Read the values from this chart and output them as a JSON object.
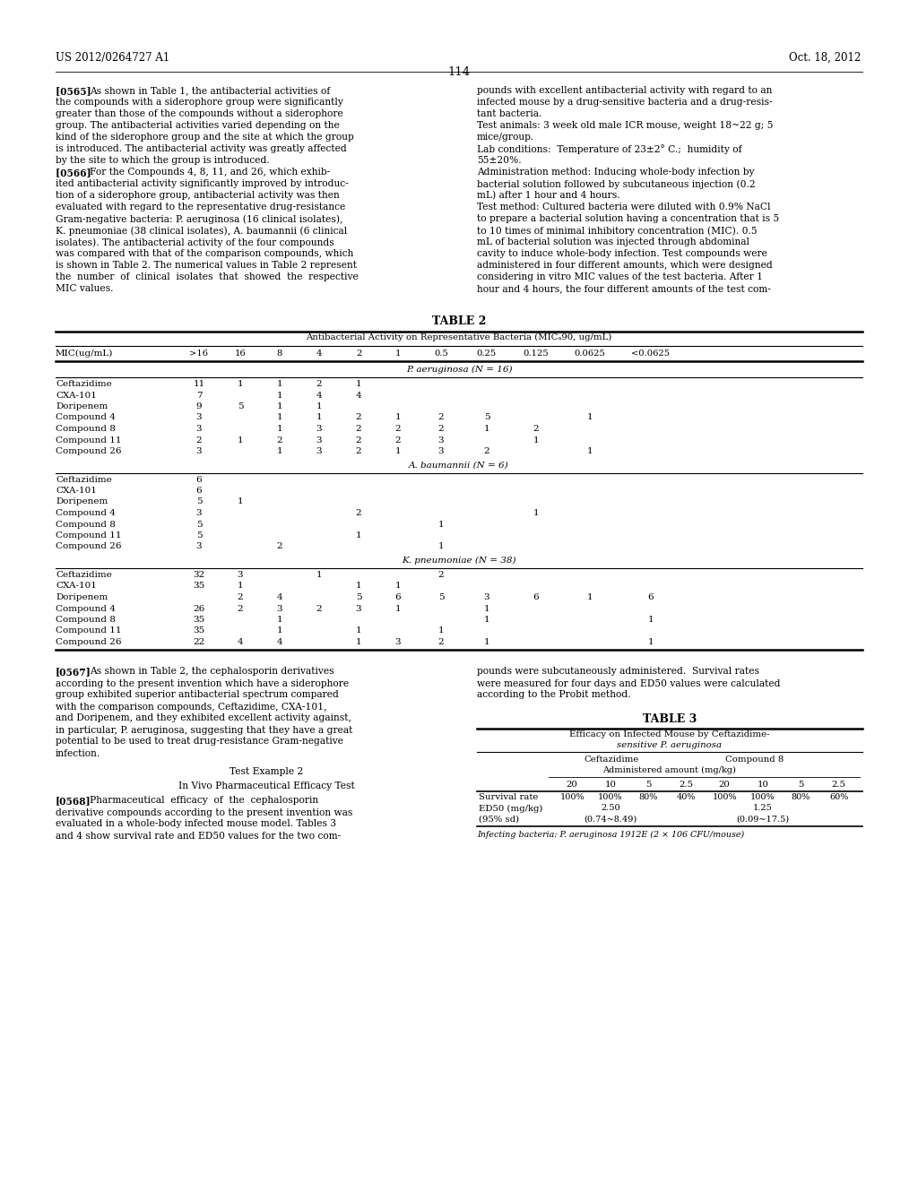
{
  "page_header_left": "US 2012/0264727 A1",
  "page_header_right": "Oct. 18, 2012",
  "page_number": "114",
  "background_color": "#ffffff",
  "text565_left_lines": [
    "[0565]  As shown in Table 1, the antibacterial activities of",
    "the compounds with a siderophore group were significantly",
    "greater than those of the compounds without a siderophore",
    "group. The antibacterial activities varied depending on the",
    "kind of the siderophore group and the site at which the group",
    "is introduced. The antibacterial activity was greatly affected",
    "by the site to which the group is introduced.",
    "[0566]  For the Compounds 4, 8, 11, and 26, which exhib-",
    "ited antibacterial activity significantly improved by introduc-",
    "tion of a siderophore group, antibacterial activity was then",
    "evaluated with regard to the representative drug-resistance",
    "Gram-negative bacteria: P. aeruginosa (16 clinical isolates),",
    "K. pneumoniae (38 clinical isolates), A. baumannii (6 clinical",
    "isolates). The antibacterial activity of the four compounds",
    "was compared with that of the comparison compounds, which",
    "is shown in Table 2. The numerical values in Table 2 represent",
    "the  number  of  clinical  isolates  that  showed  the  respective",
    "MIC values."
  ],
  "text565_right_lines": [
    "pounds with excellent antibacterial activity with regard to an",
    "infected mouse by a drug-sensitive bacteria and a drug-resis-",
    "tant bacteria.",
    "Test animals: 3 week old male ICR mouse, weight 18~22 g; 5",
    "mice/group.",
    "Lab conditions:  Temperature of 23±2° C.;  humidity of",
    "55±20%.",
    "Administration method: Inducing whole-body infection by",
    "bacterial solution followed by subcutaneous injection (0.2",
    "mL) after 1 hour and 4 hours.",
    "Test method: Cultured bacteria were diluted with 0.9% NaCl",
    "to prepare a bacterial solution having a concentration that is 5",
    "to 10 times of minimal inhibitory concentration (MIC). 0.5",
    "mL of bacterial solution was injected through abdominal",
    "cavity to induce whole-body infection. Test compounds were",
    "administered in four different amounts, which were designed",
    "considering in vitro MIC values of the test bacteria. After 1",
    "hour and 4 hours, the four different amounts of the test com-"
  ],
  "table2_title": "TABLE 2",
  "table2_subtitle": "Antibacterial Activity on Representative Bacteria (MICₐ90, ug/mL)",
  "table2_col_labels": [
    ">16",
    "16",
    "8",
    "4",
    "2",
    "1",
    "0.5",
    "0.25",
    "0.125",
    "0.0625",
    "<0.0625"
  ],
  "table2_section1_label": "P. aeruginosa (N = 16)",
  "table2_section1": [
    [
      "Ceftazidime",
      "11",
      "1",
      "1",
      "2",
      "1",
      "",
      "",
      "",
      "",
      "",
      ""
    ],
    [
      "CXA-101",
      "7",
      "",
      "1",
      "4",
      "4",
      "",
      "",
      "",
      "",
      "",
      ""
    ],
    [
      "Doripenem",
      "9",
      "5",
      "1",
      "1",
      "",
      "",
      "",
      "",
      "",
      "",
      ""
    ],
    [
      "Compound 4",
      "3",
      "",
      "1",
      "1",
      "2",
      "1",
      "2",
      "5",
      "",
      "1",
      ""
    ],
    [
      "Compound 8",
      "3",
      "",
      "1",
      "3",
      "2",
      "2",
      "2",
      "1",
      "2",
      "",
      ""
    ],
    [
      "Compound 11",
      "2",
      "1",
      "2",
      "3",
      "2",
      "2",
      "3",
      "",
      "1",
      "",
      ""
    ],
    [
      "Compound 26",
      "3",
      "",
      "1",
      "3",
      "2",
      "1",
      "3",
      "2",
      "",
      "1",
      ""
    ]
  ],
  "table2_section2_label": "A. baumannii (N = 6)",
  "table2_section2": [
    [
      "Ceftazidime",
      "6",
      "",
      "",
      "",
      "",
      "",
      "",
      "",
      "",
      "",
      ""
    ],
    [
      "CXA-101",
      "6",
      "",
      "",
      "",
      "",
      "",
      "",
      "",
      "",
      "",
      ""
    ],
    [
      "Doripenem",
      "5",
      "1",
      "",
      "",
      "",
      "",
      "",
      "",
      "",
      "",
      ""
    ],
    [
      "Compound 4",
      "3",
      "",
      "",
      "",
      "2",
      "",
      "",
      "",
      "1",
      "",
      ""
    ],
    [
      "Compound 8",
      "5",
      "",
      "",
      "",
      "",
      "",
      "1",
      "",
      "",
      "",
      ""
    ],
    [
      "Compound 11",
      "5",
      "",
      "",
      "",
      "1",
      "",
      "",
      "",
      "",
      "",
      ""
    ],
    [
      "Compound 26",
      "3",
      "",
      "2",
      "",
      "",
      "",
      "1",
      "",
      "",
      "",
      ""
    ]
  ],
  "table2_section3_label": "K. pneumoniae (N = 38)",
  "table2_section3": [
    [
      "Ceftazidime",
      "32",
      "3",
      "",
      "1",
      "",
      "",
      "2",
      "",
      "",
      "",
      ""
    ],
    [
      "CXA-101",
      "35",
      "1",
      "",
      "",
      "1",
      "1",
      "",
      "",
      "",
      "",
      ""
    ],
    [
      "Doripenem",
      "",
      "2",
      "4",
      "",
      "5",
      "6",
      "5",
      "3",
      "6",
      "1",
      "6"
    ],
    [
      "Compound 4",
      "26",
      "2",
      "3",
      "2",
      "3",
      "1",
      "",
      "1",
      "",
      "",
      ""
    ],
    [
      "Compound 8",
      "35",
      "",
      "1",
      "",
      "",
      "",
      "",
      "1",
      "",
      "",
      "1"
    ],
    [
      "Compound 11",
      "35",
      "",
      "1",
      "",
      "1",
      "",
      "1",
      "",
      "",
      "",
      ""
    ],
    [
      "Compound 26",
      "22",
      "4",
      "4",
      "",
      "1",
      "3",
      "2",
      "1",
      "",
      "",
      "1"
    ]
  ],
  "text567_left_lines": [
    "[0567]  As shown in Table 2, the cephalosporin derivatives",
    "according to the present invention which have a siderophore",
    "group exhibited superior antibacterial spectrum compared",
    "with the comparison compounds, Ceftazidime, CXA-101,",
    "and Doripenem, and they exhibited excellent activity against,",
    "in particular, P. aeruginosa, suggesting that they have a great",
    "potential to be used to treat drug-resistance Gram-negative",
    "infection."
  ],
  "test_ex2_title": "Test Example 2",
  "test_ex2_sub": "In Vivo Pharmaceutical Efficacy Test",
  "text568_left_lines": [
    "[0568]  Pharmaceutical  efficacy  of  the  cephalosporin",
    "derivative compounds according to the present invention was",
    "evaluated in a whole-body infected mouse model. Tables 3",
    "and 4 show survival rate and ED50 values for the two com-"
  ],
  "text567_right_lines": [
    "pounds were subcutaneously administered.  Survival rates",
    "were measured for four days and ED50 values were calculated",
    "according to the Probit method."
  ],
  "table3_title": "TABLE 3",
  "table3_sub1": "Efficacy on Infected Mouse by Ceftazidime-",
  "table3_sub2": "sensitive P. aeruginosa",
  "table3_col1": "Ceftazidime",
  "table3_col2": "Compound 8",
  "table3_subheader": "Administered amount (mg/kg)",
  "table3_doses": [
    "20",
    "10",
    "5",
    "2.5",
    "20",
    "10",
    "5",
    "2.5"
  ],
  "table3_data": [
    [
      "Survival rate",
      "100%",
      "100%",
      "80%",
      "40%",
      "100%",
      "100%",
      "80%",
      "60%"
    ],
    [
      "ED50 (mg/kg)",
      "",
      "2.50",
      "",
      "",
      "",
      "1.25",
      "",
      ""
    ],
    [
      "(95% sd)",
      "",
      "(0.74~8.49)",
      "",
      "",
      "",
      "(0.09~17.5)",
      "",
      ""
    ]
  ],
  "table3_footnote": "Infecting bacteria: P. aeruginosa 1912E (2 × 106 CFU/mouse)"
}
